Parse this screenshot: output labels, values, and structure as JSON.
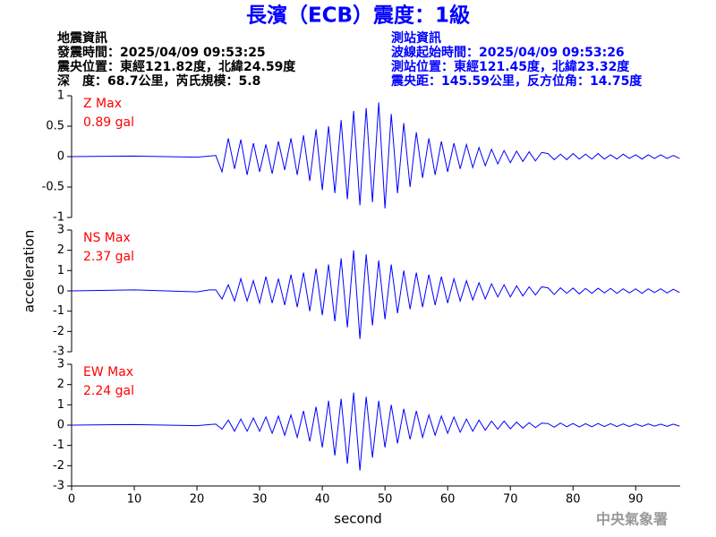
{
  "header": {
    "title": "長濱（ECB）震度：1級",
    "left": [
      "地震資訊",
      "發震時間：2025/04/09 09:53:25",
      "震央位置：東經121.82度，北緯24.59度",
      "深　度：68.7公里，芮氏規模：5.8"
    ],
    "right": [
      "測站資訊",
      "波線起始時間：2025/04/09 09:53:26",
      "測站位置：東經121.45度，北緯23.32度",
      "震央距：145.59公里，反方位角：14.75度"
    ]
  },
  "footer": "中央氣象署",
  "chart_data": [
    {
      "type": "line",
      "annotations": [
        "Z Max",
        "0.89 gal"
      ],
      "color": "#0000ff",
      "xlim": [
        0,
        97.1
      ],
      "ylim": [
        -1,
        1
      ],
      "yticks": [
        -1,
        -0.5,
        0,
        0.5,
        1
      ],
      "x": [
        0,
        10,
        20,
        22,
        23,
        24,
        25,
        26,
        27,
        28,
        29,
        30,
        31,
        32,
        33,
        34,
        35,
        36,
        37,
        38,
        39,
        40,
        41,
        42,
        43,
        44,
        45,
        46,
        47,
        48,
        49,
        50,
        51,
        52,
        53,
        54,
        55,
        56,
        57,
        58,
        59,
        60,
        61,
        62,
        63,
        64,
        65,
        66,
        67,
        68,
        69,
        70,
        71,
        72,
        73,
        74,
        75,
        76,
        77,
        78,
        79,
        80,
        81,
        82,
        83,
        84,
        85,
        86,
        87,
        88,
        89,
        90,
        91,
        92,
        93,
        94,
        95,
        96,
        97
      ],
      "values": [
        0,
        0.01,
        -0.01,
        0.01,
        0.02,
        -0.25,
        0.3,
        -0.2,
        0.28,
        -0.3,
        0.22,
        -0.25,
        0.2,
        -0.28,
        0.25,
        -0.22,
        0.3,
        -0.3,
        0.35,
        -0.4,
        0.45,
        -0.55,
        0.5,
        -0.6,
        0.6,
        -0.7,
        0.75,
        -0.8,
        0.8,
        -0.75,
        0.89,
        -0.85,
        0.7,
        -0.6,
        0.55,
        -0.5,
        0.4,
        -0.35,
        0.3,
        -0.3,
        0.25,
        -0.25,
        0.22,
        -0.2,
        0.2,
        -0.18,
        0.15,
        -0.15,
        0.12,
        -0.12,
        0.1,
        -0.1,
        0.09,
        -0.08,
        0.08,
        -0.07,
        0.07,
        0.05,
        -0.05,
        0.04,
        -0.05,
        0.05,
        -0.04,
        0.04,
        -0.04,
        0.05,
        -0.04,
        0.03,
        -0.04,
        0.04,
        -0.03,
        0.03,
        -0.04,
        0.03,
        -0.03,
        0.03,
        -0.03,
        0.02,
        -0.03
      ]
    },
    {
      "type": "line",
      "annotations": [
        "NS Max",
        "2.37 gal"
      ],
      "ylabel": "acceleration",
      "color": "#0000ff",
      "xlim": [
        0,
        97.1
      ],
      "ylim": [
        -3,
        3
      ],
      "yticks": [
        -3,
        -2,
        -1,
        0,
        1,
        2,
        3
      ],
      "x": [
        0,
        10,
        20,
        22,
        23,
        24,
        25,
        26,
        27,
        28,
        29,
        30,
        31,
        32,
        33,
        34,
        35,
        36,
        37,
        38,
        39,
        40,
        41,
        42,
        43,
        44,
        45,
        46,
        47,
        48,
        49,
        50,
        51,
        52,
        53,
        54,
        55,
        56,
        57,
        58,
        59,
        60,
        61,
        62,
        63,
        64,
        65,
        66,
        67,
        68,
        69,
        70,
        71,
        72,
        73,
        74,
        75,
        76,
        77,
        78,
        79,
        80,
        81,
        82,
        83,
        84,
        85,
        86,
        87,
        88,
        89,
        90,
        91,
        92,
        93,
        94,
        95,
        96,
        97
      ],
      "values": [
        0,
        0.05,
        -0.05,
        0.05,
        0.05,
        -0.4,
        0.3,
        -0.5,
        0.6,
        -0.5,
        0.5,
        -0.6,
        0.7,
        -0.6,
        0.6,
        -0.7,
        0.8,
        -0.8,
        0.9,
        -1.0,
        1.1,
        -1.2,
        1.3,
        -1.5,
        1.6,
        -1.8,
        2.0,
        -2.37,
        1.8,
        -1.7,
        1.5,
        -1.4,
        1.3,
        -1.1,
        1.0,
        -0.9,
        0.9,
        -0.8,
        0.8,
        -0.7,
        0.7,
        -0.6,
        0.6,
        -0.5,
        0.5,
        -0.45,
        0.4,
        -0.4,
        0.35,
        -0.3,
        0.3,
        -0.3,
        0.25,
        -0.25,
        0.2,
        -0.2,
        0.2,
        0.15,
        -0.18,
        0.15,
        -0.12,
        0.14,
        -0.15,
        0.12,
        -0.12,
        0.13,
        -0.1,
        0.12,
        -0.12,
        0.1,
        -0.1,
        0.1,
        -0.12,
        0.1,
        -0.08,
        0.1,
        -0.1,
        0.08,
        -0.08
      ]
    },
    {
      "type": "line",
      "annotations": [
        "EW Max",
        "2.24 gal"
      ],
      "xlabel": "second",
      "color": "#0000ff",
      "xlim": [
        0,
        97.1
      ],
      "ylim": [
        -3,
        3
      ],
      "yticks": [
        -3,
        -2,
        -1,
        0,
        1,
        2,
        3
      ],
      "xticks": [
        0,
        10,
        20,
        30,
        40,
        50,
        60,
        70,
        80,
        90
      ],
      "x": [
        0,
        10,
        20,
        22,
        23,
        24,
        25,
        26,
        27,
        28,
        29,
        30,
        31,
        32,
        33,
        34,
        35,
        36,
        37,
        38,
        39,
        40,
        41,
        42,
        43,
        44,
        45,
        46,
        47,
        48,
        49,
        50,
        51,
        52,
        53,
        54,
        55,
        56,
        57,
        58,
        59,
        60,
        61,
        62,
        63,
        64,
        65,
        66,
        67,
        68,
        69,
        70,
        71,
        72,
        73,
        74,
        75,
        76,
        77,
        78,
        79,
        80,
        81,
        82,
        83,
        84,
        85,
        86,
        87,
        88,
        89,
        90,
        91,
        92,
        93,
        94,
        95,
        96,
        97
      ],
      "values": [
        0,
        0.03,
        -0.03,
        0.03,
        0.05,
        -0.2,
        0.25,
        -0.3,
        0.3,
        -0.3,
        0.35,
        -0.3,
        0.4,
        -0.4,
        0.45,
        -0.5,
        0.5,
        -0.6,
        0.7,
        -0.8,
        0.9,
        -1.1,
        1.2,
        -1.5,
        1.3,
        -1.9,
        1.6,
        -2.24,
        1.4,
        -1.6,
        1.2,
        -1.1,
        1.0,
        -0.9,
        0.8,
        -0.7,
        0.7,
        -0.6,
        0.5,
        -0.5,
        0.45,
        -0.4,
        0.4,
        -0.35,
        0.3,
        -0.3,
        0.25,
        -0.25,
        0.2,
        -0.2,
        0.2,
        -0.18,
        0.15,
        -0.15,
        0.12,
        -0.12,
        0.1,
        0.08,
        -0.1,
        0.1,
        -0.08,
        0.08,
        -0.09,
        0.07,
        -0.08,
        0.08,
        -0.07,
        0.07,
        -0.07,
        0.06,
        -0.07,
        0.06,
        -0.06,
        0.06,
        -0.05,
        0.05,
        -0.06,
        0.05,
        -0.05
      ]
    }
  ]
}
